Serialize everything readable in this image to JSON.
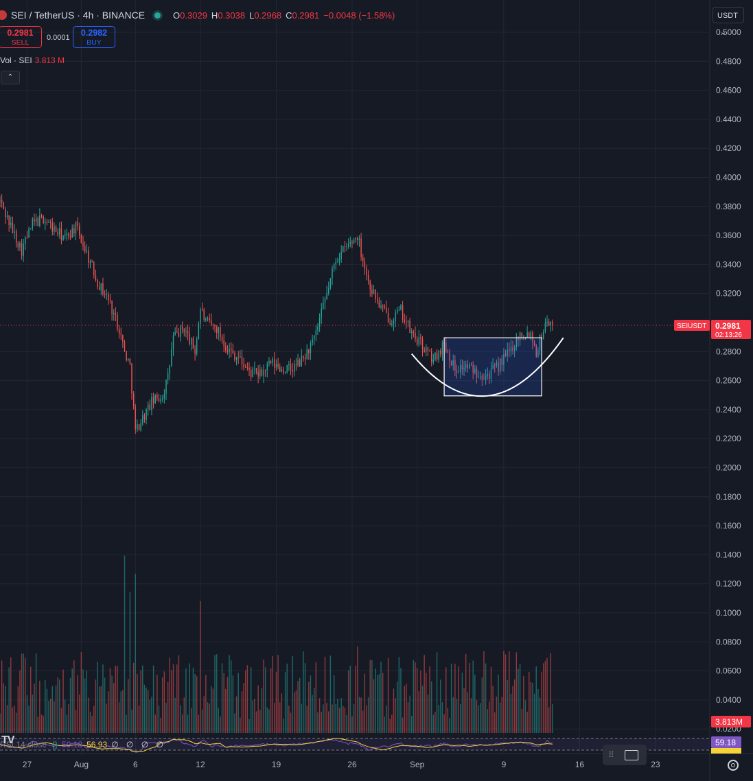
{
  "header": {
    "symbol": "SEI / TetherUS · 4h · BINANCE",
    "o_label": "O",
    "o_value": "0.3029",
    "h_label": "H",
    "h_value": "0.3038",
    "l_label": "L",
    "l_value": "0.2968",
    "c_label": "C",
    "c_value": "0.2981",
    "change": "−0.0048 (−1.58%)"
  },
  "trade": {
    "sell_price": "0.2981",
    "sell_label": "SELL",
    "spread": "0.0001",
    "buy_price": "0.2982",
    "buy_label": "BUY"
  },
  "volume_legend": {
    "name": "Vol · SEI",
    "value": "3.813 M"
  },
  "collapse_glyph": "⌃",
  "currency": {
    "value": "USDT",
    "caret": "⌄"
  },
  "rsi_legend": {
    "name": "RSI 14 close",
    "badge": "{}",
    "rsi": "59.18",
    "ma": "56.93",
    "extras": "∅ ∅ ∅ ∅"
  },
  "screenshot_grip": "⠿",
  "logo_text": "TV",
  "colors": {
    "up": "#26a69a",
    "down": "#ef5350",
    "background": "#161a25",
    "grid": "#232733",
    "rsi": "#7e57c2",
    "rsi_ma": "#f7d33a",
    "price_tag": "#f23645"
  },
  "chart_data": {
    "type": "candlestick",
    "title": "SEI / TetherUS · 4h · BINANCE",
    "interval": "4h",
    "y_ticks": [
      "0.5000",
      "0.4800",
      "0.4600",
      "0.4400",
      "0.4200",
      "0.4000",
      "0.3800",
      "0.3600",
      "0.3400",
      "0.3200",
      "0.2800",
      "0.2600",
      "0.2400",
      "0.2200",
      "0.2000",
      "0.1800",
      "0.1600",
      "0.1400",
      "0.1200",
      "0.1000",
      "0.0800",
      "0.0600",
      "0.0400",
      "0.0200"
    ],
    "ylim": [
      0.016,
      0.508
    ],
    "x_ticks": [
      {
        "date": "2024-07-27",
        "label": "27"
      },
      {
        "date": "2024-08-01",
        "label": "Aug"
      },
      {
        "date": "2024-08-06",
        "label": "6"
      },
      {
        "date": "2024-08-12",
        "label": "12"
      },
      {
        "date": "2024-08-19",
        "label": "19"
      },
      {
        "date": "2024-08-26",
        "label": "26"
      },
      {
        "date": "2024-09-01",
        "label": "Sep"
      },
      {
        "date": "2024-09-09",
        "label": "9"
      },
      {
        "date": "2024-09-16",
        "label": "16"
      },
      {
        "date": "2024-09-23",
        "label": "23"
      }
    ],
    "xlim": [
      "2024-07-24T12:00",
      "2024-09-27T00:00"
    ],
    "price_path": [
      [
        "2024-07-24T12:00",
        0.384
      ],
      [
        "2024-07-25T12:00",
        0.366
      ],
      [
        "2024-07-26T12:00",
        0.35
      ],
      [
        "2024-07-27T12:00",
        0.368
      ],
      [
        "2024-07-28T12:00",
        0.372
      ],
      [
        "2024-07-29T12:00",
        0.364
      ],
      [
        "2024-07-30T12:00",
        0.358
      ],
      [
        "2024-07-31T12:00",
        0.366
      ],
      [
        "2024-08-01T12:00",
        0.348
      ],
      [
        "2024-08-02T12:00",
        0.328
      ],
      [
        "2024-08-03T12:00",
        0.316
      ],
      [
        "2024-08-04T12:00",
        0.296
      ],
      [
        "2024-08-05T00:00",
        0.28
      ],
      [
        "2024-08-05T12:00",
        0.27
      ],
      [
        "2024-08-06T00:00",
        0.225
      ],
      [
        "2024-08-06T12:00",
        0.232
      ],
      [
        "2024-08-07T12:00",
        0.245
      ],
      [
        "2024-08-08T12:00",
        0.25
      ],
      [
        "2024-08-09T00:00",
        0.262
      ],
      [
        "2024-08-09T12:00",
        0.29
      ],
      [
        "2024-08-10T12:00",
        0.296
      ],
      [
        "2024-08-11T12:00",
        0.28
      ],
      [
        "2024-08-12T00:00",
        0.31
      ],
      [
        "2024-08-12T12:00",
        0.3
      ],
      [
        "2024-08-13T12:00",
        0.296
      ],
      [
        "2024-08-14T12:00",
        0.282
      ],
      [
        "2024-08-15T12:00",
        0.276
      ],
      [
        "2024-08-16T12:00",
        0.266
      ],
      [
        "2024-08-17T12:00",
        0.264
      ],
      [
        "2024-08-18T12:00",
        0.272
      ],
      [
        "2024-08-19T12:00",
        0.268
      ],
      [
        "2024-08-20T12:00",
        0.268
      ],
      [
        "2024-08-21T12:00",
        0.275
      ],
      [
        "2024-08-22T12:00",
        0.288
      ],
      [
        "2024-08-23T12:00",
        0.315
      ],
      [
        "2024-08-24T12:00",
        0.344
      ],
      [
        "2024-08-25T12:00",
        0.352
      ],
      [
        "2024-08-26T12:00",
        0.36
      ],
      [
        "2024-08-27T00:00",
        0.344
      ],
      [
        "2024-08-27T12:00",
        0.328
      ],
      [
        "2024-08-28T12:00",
        0.312
      ],
      [
        "2024-08-29T12:00",
        0.302
      ],
      [
        "2024-08-30T12:00",
        0.308
      ],
      [
        "2024-08-31T12:00",
        0.292
      ],
      [
        "2024-09-01T12:00",
        0.284
      ],
      [
        "2024-09-02T12:00",
        0.274
      ],
      [
        "2024-09-03T12:00",
        0.286
      ],
      [
        "2024-09-04T12:00",
        0.268
      ],
      [
        "2024-09-05T12:00",
        0.27
      ],
      [
        "2024-09-06T12:00",
        0.266
      ],
      [
        "2024-09-07T12:00",
        0.264
      ],
      [
        "2024-09-08T12:00",
        0.27
      ],
      [
        "2024-09-09T12:00",
        0.28
      ],
      [
        "2024-09-10T12:00",
        0.292
      ],
      [
        "2024-09-11T12:00",
        0.293
      ],
      [
        "2024-09-12T00:00",
        0.28
      ],
      [
        "2024-09-12T12:00",
        0.292
      ],
      [
        "2024-09-13T00:00",
        0.302
      ],
      [
        "2024-09-13T12:00",
        0.2981
      ]
    ],
    "last_price": {
      "symbol": "SEIUSDT",
      "price": "0.2981",
      "countdown": "02:13:26",
      "value": 0.2981
    },
    "annotations": {
      "rectangle": {
        "from_date": "2024-09-03T12:00",
        "to_date": "2024-09-12T12:00",
        "price_top": 0.2895,
        "price_bottom": 0.2495
      },
      "arc": {
        "start": [
          "2024-08-31T12:00",
          0.2785
        ],
        "bottom": [
          "2024-09-07T12:00",
          0.2495
        ],
        "end": [
          "2024-09-14T12:00",
          0.2895
        ]
      }
    },
    "volume": {
      "label": "Vol · SEI",
      "last_value": "3.813M",
      "max_m": 80,
      "spikes": [
        {
          "date": "2024-08-05T00:00",
          "value_m": 78
        },
        {
          "date": "2024-08-05T12:00",
          "value_m": 62
        },
        {
          "date": "2024-08-06T00:00",
          "value_m": 70
        },
        {
          "date": "2024-08-12T00:00",
          "value_m": 58
        },
        {
          "date": "2024-08-24T00:00",
          "value_m": 34
        },
        {
          "date": "2024-08-26T12:00",
          "value_m": 38
        },
        {
          "date": "2024-09-09T00:00",
          "value_m": 36
        },
        {
          "date": "2024-09-13T00:00",
          "value_m": 33
        }
      ]
    },
    "rsi": {
      "label": "RSI 14 close",
      "value": "59.18",
      "ma_value": "56.93"
    }
  }
}
